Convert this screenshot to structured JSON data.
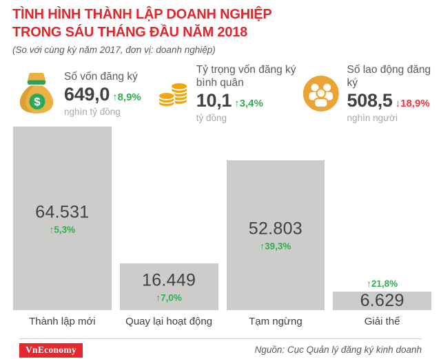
{
  "header": {
    "title_line1": "TÌNH HÌNH THÀNH LẬP DOANH NGHIỆP",
    "title_line2": "TRONG SÁU THÁNG ĐẦU NĂM 2018",
    "subtitle": "(So với cùng kỳ năm 2017, đơn vị: doanh nghiệp)"
  },
  "stats": [
    {
      "icon": "money-bag-icon",
      "label": "Số vốn đăng ký",
      "value": "649,0",
      "change": "8,9%",
      "direction": "up",
      "unit": "nghìn tỷ đồng"
    },
    {
      "icon": "coin-stack-icon",
      "label": "Tỷ trọng vốn đăng ký bình quân",
      "value": "10,1",
      "change": "3,4%",
      "direction": "up",
      "unit": "tỷ đồng"
    },
    {
      "icon": "people-group-icon",
      "label": "Số lao động đăng ký",
      "value": "508,5",
      "change": "18,9%",
      "direction": "down",
      "unit": "nghìn người"
    }
  ],
  "chart_data": {
    "type": "bar",
    "title": "Tình hình thành lập doanh nghiệp trong sáu tháng đầu năm 2018",
    "unit": "doanh nghiệp",
    "comparison_note": "So với cùng kỳ năm 2017",
    "categories": [
      "Thành lập mới",
      "Quay lại hoạt động",
      "Tạm ngừng",
      "Giải thể"
    ],
    "values": [
      64531,
      16449,
      52803,
      6629
    ],
    "value_labels": [
      "64.531",
      "16.449",
      "52.803",
      "6.629"
    ],
    "changes": [
      {
        "text": "5,3%",
        "direction": "up"
      },
      {
        "text": "7,0%",
        "direction": "up"
      },
      {
        "text": "39,3%",
        "direction": "up"
      },
      {
        "text": "21,8%",
        "direction": "up"
      }
    ],
    "ylim": [
      0,
      64531
    ],
    "grid": false,
    "legend": false,
    "bar_color": "#cdcccb"
  },
  "footer": {
    "logo_text": "VnEconomy",
    "source": "Nguồn: Cục Quản lý đăng ký kinh doanh"
  },
  "colors": {
    "accent_red": "#e2252b",
    "positive_green": "#2fae4c",
    "negative_red": "#e8373e",
    "bar_gray": "#cdcccb",
    "text_dark": "#414042",
    "text_gray": "#58595b",
    "text_light": "#a5a7a9"
  }
}
